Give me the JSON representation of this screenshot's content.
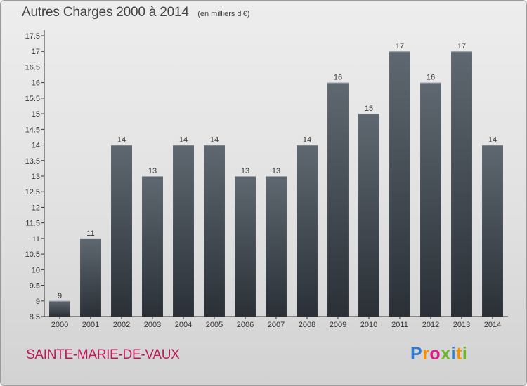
{
  "title": "Autres Charges 2000 à 2014",
  "subtitle": "(en milliers d'€)",
  "commune": "SAINTE-MARIE-DE-VAUX",
  "logo": {
    "letters": [
      "P",
      "r",
      "o",
      "x",
      "i",
      "t",
      "i"
    ],
    "colors": [
      "#2e7bcf",
      "#f39200",
      "#e0208a",
      "#6fb82b",
      "#2e7bcf",
      "#f39200",
      "#6fb82b"
    ]
  },
  "colors": {
    "bar_top": "#5f6870",
    "bar_bottom": "#2a3036",
    "title": "#444444",
    "commune": "#c2185b"
  },
  "chart_data": {
    "type": "bar",
    "categories": [
      "2000",
      "2001",
      "2002",
      "2003",
      "2004",
      "2005",
      "2006",
      "2007",
      "2008",
      "2009",
      "2010",
      "2011",
      "2012",
      "2013",
      "2014"
    ],
    "values": [
      9,
      11,
      14,
      13,
      14,
      14,
      13,
      13,
      14,
      16,
      15,
      17,
      16,
      17,
      14
    ],
    "data_labels": [
      "9",
      "11",
      "14",
      "13",
      "14",
      "14",
      "13",
      "13",
      "14",
      "16",
      "15",
      "17",
      "16",
      "17",
      "14"
    ],
    "title": "Autres Charges 2000 à 2014",
    "subtitle": "(en milliers d'€)",
    "ylim": [
      8.5,
      17.5
    ],
    "y_ticks": [
      8.5,
      9,
      9.5,
      10,
      10.5,
      11,
      11.5,
      12,
      12.5,
      13,
      13.5,
      14,
      14.5,
      15,
      15.5,
      16,
      16.5,
      17,
      17.5
    ],
    "y_tick_labels": [
      "8.5",
      "9",
      "9.5",
      "10",
      "10.5",
      "11",
      "11.5",
      "12",
      "12.5",
      "13",
      "13.5",
      "14",
      "14.5",
      "15",
      "15.5",
      "16",
      "16.5",
      "17",
      "17.5"
    ],
    "grid": false,
    "legend": "none"
  }
}
